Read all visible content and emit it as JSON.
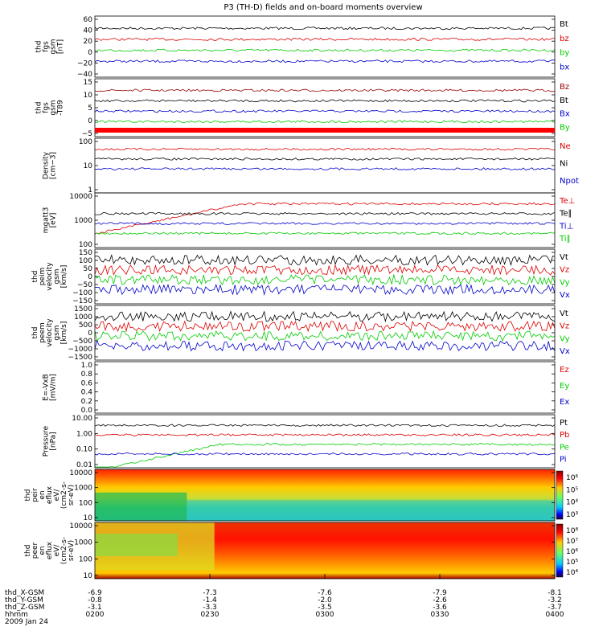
{
  "title": "P3 (TH-D) fields and on-board moments overview",
  "colors": {
    "black": "#000000",
    "red": "#dd0000",
    "green": "#00cc00",
    "blue": "#0000cc",
    "darkred": "#990000"
  },
  "chart_data": {
    "type": "line",
    "x_time": {
      "start": "0200",
      "end": "0400",
      "unit": "hhmm"
    },
    "panels": [
      {
        "ylabel": [
          "thd",
          "fgs",
          "gsm",
          "[nT]"
        ],
        "ticks": [
          "60",
          "40",
          "20",
          "0",
          "−20",
          "−40"
        ],
        "ylim": [
          -40,
          60
        ],
        "legend": [
          {
            "text": "Bt",
            "color": "#000000"
          },
          {
            "text": "bz",
            "color": "#dd0000"
          },
          {
            "text": "by",
            "color": "#00cc00"
          },
          {
            "text": "bx",
            "color": "#0000cc"
          }
        ]
      },
      {
        "ylabel": [
          "thd",
          "fgs",
          "gsm",
          "-T89"
        ],
        "ticks": [
          "15",
          "10",
          "5",
          "0",
          "−5"
        ],
        "ylim": [
          -7,
          15
        ],
        "legend": [
          {
            "text": "Bz",
            "color": "#990000"
          },
          {
            "text": "Bt",
            "color": "#000000"
          },
          {
            "text": "Bx",
            "color": "#0000cc"
          },
          {
            "text": "By",
            "color": "#00cc00"
          }
        ]
      },
      {
        "ylabel": [
          "Density",
          "[cm−3]"
        ],
        "ticks": [
          "100",
          "10",
          "1"
        ],
        "log": true,
        "ylim": [
          0.5,
          200
        ],
        "legend": [
          {
            "text": "Ne",
            "color": "#dd0000"
          },
          {
            "text": "Ni",
            "color": "#000000"
          },
          {
            "text": "Npot",
            "color": "#0000cc"
          }
        ]
      },
      {
        "ylabel": [
          "mgatt3",
          "[eV]"
        ],
        "ticks": [
          "10000",
          "1000",
          "100"
        ],
        "log": true,
        "ylim": [
          50,
          12000
        ],
        "legend": [
          {
            "text": "Te⊥",
            "color": "#dd0000"
          },
          {
            "text": "Te∥",
            "color": "#000000"
          },
          {
            "text": "Ti⊥",
            "color": "#0000cc"
          },
          {
            "text": "Ti∥",
            "color": "#00cc00"
          }
        ]
      },
      {
        "ylabel": [
          "thd",
          "peim",
          "velocity",
          "gsm",
          "[km/s]"
        ],
        "ticks": [
          "150",
          "100",
          "50",
          "0",
          "−50",
          "−100",
          "−150"
        ],
        "ylim": [
          -150,
          150
        ],
        "legend": [
          {
            "text": "Vt",
            "color": "#000000"
          },
          {
            "text": "Vz",
            "color": "#dd0000"
          },
          {
            "text": "Vy",
            "color": "#00cc00"
          },
          {
            "text": "Vx",
            "color": "#0000cc"
          }
        ]
      },
      {
        "ylabel": [
          "thd",
          "peem",
          "velocity",
          "gsm",
          "[km/s]"
        ],
        "ticks": [
          "1500",
          "1000",
          "500",
          "0",
          "−500",
          "−1000",
          "−1500"
        ],
        "ylim": [
          -1500,
          1500
        ],
        "legend": [
          {
            "text": "Vt",
            "color": "#000000"
          },
          {
            "text": "Vz",
            "color": "#dd0000"
          },
          {
            "text": "Vy",
            "color": "#00cc00"
          },
          {
            "text": "Vx",
            "color": "#0000cc"
          }
        ]
      },
      {
        "ylabel": [
          "E=-VxB",
          "[mV/m]"
        ],
        "ticks": [
          "1.0",
          "0.8",
          "0.6",
          "0.4",
          "0.2",
          "0.0"
        ],
        "ylim": [
          0,
          1
        ],
        "legend": [
          {
            "text": "Ez",
            "color": "#dd0000"
          },
          {
            "text": "Ey",
            "color": "#00cc00"
          },
          {
            "text": "Ex",
            "color": "#0000cc"
          }
        ]
      },
      {
        "ylabel": [
          "Pressure",
          "[nPa]"
        ],
        "ticks": [
          "10.00",
          "1.00",
          "0.10",
          "0.01"
        ],
        "log": true,
        "ylim": [
          0.01,
          10
        ],
        "legend": [
          {
            "text": "Pt",
            "color": "#000000"
          },
          {
            "text": "Pb",
            "color": "#dd0000"
          },
          {
            "text": "Pe",
            "color": "#00cc00"
          },
          {
            "text": "Pi",
            "color": "#0000cc"
          }
        ]
      },
      {
        "ylabel": [
          "thd",
          "peir",
          "en",
          "eflux",
          "eV/",
          "(cm2-s-",
          "sr-eV)"
        ],
        "ticks": [
          "10000",
          "1000",
          "100",
          "10"
        ],
        "spectrogram": true,
        "colorbar": [
          "10⁶",
          "10⁵",
          "10⁴",
          "10³"
        ]
      },
      {
        "ylabel": [
          "thd",
          "peer",
          "en",
          "eflux",
          "eV/",
          "(cm2-s-",
          "sr-eV)"
        ],
        "ticks": [
          "10000",
          "1000",
          "100",
          "10"
        ],
        "spectrogram": true,
        "colorbar": [
          "10⁸",
          "10⁷",
          "10⁶",
          "10⁵",
          "10⁴"
        ]
      }
    ],
    "xaxis": {
      "rows": [
        {
          "label": "thd_X-GSM",
          "values": [
            "-6.9",
            "-7.3",
            "-7.6",
            "-7.9",
            "-8.1"
          ]
        },
        {
          "label": "thd_Y-GSM",
          "values": [
            "-0.8",
            "-1.4",
            "-2.0",
            "-2.6",
            "-3.2"
          ]
        },
        {
          "label": "thd_Z-GSM",
          "values": [
            "-3.1",
            "-3.3",
            "-3.5",
            "-3.6",
            "-3.7"
          ]
        },
        {
          "label": "hhmm",
          "values": [
            "0200",
            "0230",
            "0300",
            "0330",
            "0400"
          ]
        }
      ],
      "date": "2009 Jan 24"
    }
  }
}
